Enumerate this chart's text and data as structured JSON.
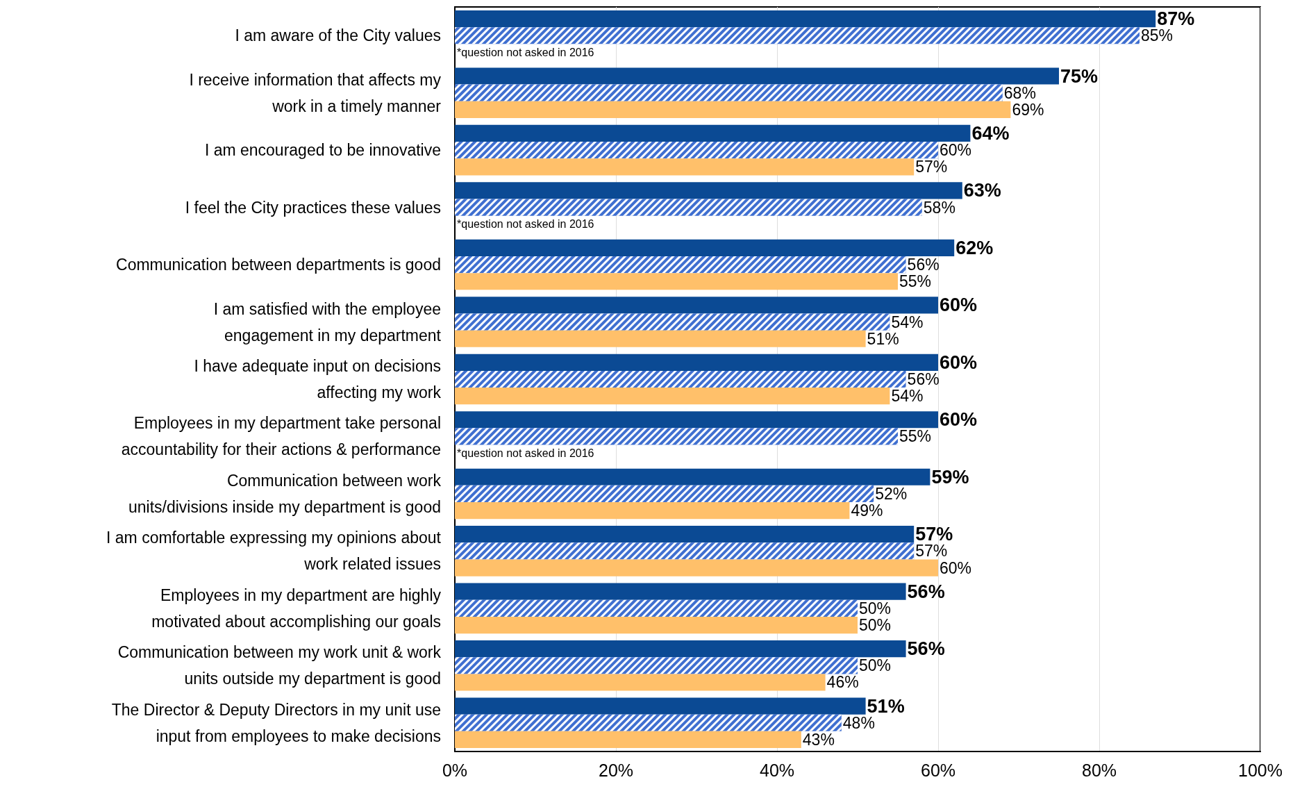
{
  "chart_data": {
    "type": "bar",
    "orientation": "horizontal",
    "categories": [
      "I am aware of the City values",
      "I receive information that affects my\nwork in a timely manner",
      "I am encouraged to be innovative",
      "I feel the City practices these values",
      "Communication between departments is good",
      "I am satisfied with the employee\nengagement in my department",
      "I have adequate input on decisions\naffecting my work",
      "Employees in my department take personal\naccountability for their actions & performance",
      "Communication between work\nunits/divisions inside my department is good",
      "I am comfortable expressing my opinions about\nwork related issues",
      "Employees in my department are highly\nmotivated about accomplishing our goals",
      "Communication between my work unit & work\nunits outside my department is good",
      "The Director & Deputy Directors in my unit use\ninput from employees to make decisions"
    ],
    "series": [
      {
        "color": "#0b4a94",
        "values": [
          87,
          75,
          64,
          63,
          62,
          60,
          60,
          60,
          59,
          57,
          56,
          56,
          51
        ],
        "value_labels": [
          "87%",
          "75%",
          "64%",
          "63%",
          "62%",
          "60%",
          "60%",
          "60%",
          "59%",
          "57%",
          "56%",
          "56%",
          "51%"
        ]
      },
      {
        "color": "#3f6fd0",
        "values": [
          85,
          68,
          60,
          58,
          56,
          54,
          56,
          55,
          52,
          57,
          50,
          50,
          48
        ],
        "value_labels": [
          "85%",
          "68%",
          "60%",
          "58%",
          "56%",
          "54%",
          "56%",
          "55%",
          "52%",
          "57%",
          "50%",
          "50%",
          "48%"
        ]
      },
      {
        "color": "#ffc06a",
        "values": [
          null,
          69,
          57,
          null,
          55,
          51,
          54,
          null,
          49,
          60,
          50,
          46,
          43
        ],
        "value_labels": [
          null,
          "69%",
          "57%",
          null,
          "55%",
          "51%",
          "54%",
          null,
          "49%",
          "60%",
          "50%",
          "46%",
          "43%"
        ]
      }
    ],
    "xlim": [
      0,
      100
    ],
    "xticks": [
      {
        "value": 0,
        "label": "0%"
      },
      {
        "value": 20,
        "label": "20%"
      },
      {
        "value": 40,
        "label": "40%"
      },
      {
        "value": 60,
        "label": "60%"
      },
      {
        "value": 80,
        "label": "80%"
      },
      {
        "value": 100,
        "label": "100%"
      }
    ],
    "grid": "x",
    "annotations": [
      "*question not asked in 2016",
      "*question not asked in 2016",
      "*question not asked in 2016"
    ]
  }
}
